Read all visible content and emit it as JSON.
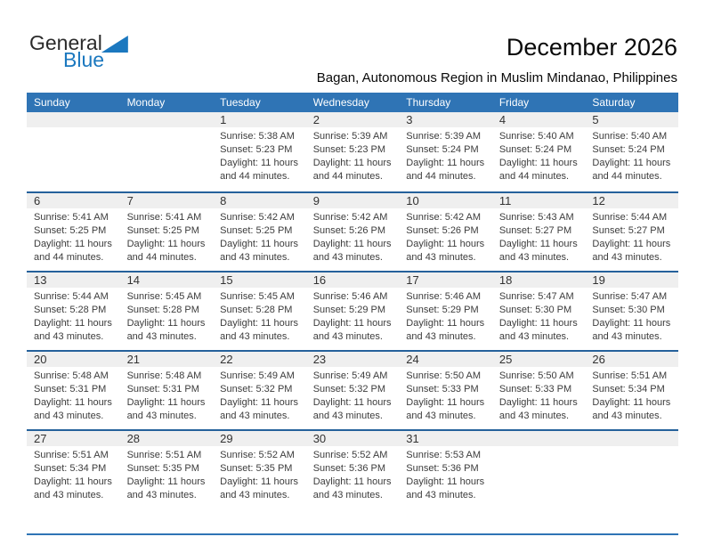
{
  "logo": {
    "text_general": "General",
    "text_blue": "Blue"
  },
  "header": {
    "title": "December 2026",
    "subtitle": "Bagan, Autonomous Region in Muslim Mindanao, Philippines"
  },
  "colors": {
    "header_bg": "#2f74b5",
    "week_divider": "#25619b",
    "day_band_bg": "#efefef",
    "accent_blue": "#1b78bf",
    "cell_text": "#3c3c3c"
  },
  "calendar": {
    "day_headers": [
      "Sunday",
      "Monday",
      "Tuesday",
      "Wednesday",
      "Thursday",
      "Friday",
      "Saturday"
    ],
    "weeks": [
      {
        "cells": [
          {
            "day": "",
            "lines": []
          },
          {
            "day": "",
            "lines": []
          },
          {
            "day": "1",
            "lines": [
              "Sunrise: 5:38 AM",
              "Sunset: 5:23 PM",
              "Daylight: 11 hours",
              "and 44 minutes."
            ]
          },
          {
            "day": "2",
            "lines": [
              "Sunrise: 5:39 AM",
              "Sunset: 5:23 PM",
              "Daylight: 11 hours",
              "and 44 minutes."
            ]
          },
          {
            "day": "3",
            "lines": [
              "Sunrise: 5:39 AM",
              "Sunset: 5:24 PM",
              "Daylight: 11 hours",
              "and 44 minutes."
            ]
          },
          {
            "day": "4",
            "lines": [
              "Sunrise: 5:40 AM",
              "Sunset: 5:24 PM",
              "Daylight: 11 hours",
              "and 44 minutes."
            ]
          },
          {
            "day": "5",
            "lines": [
              "Sunrise: 5:40 AM",
              "Sunset: 5:24 PM",
              "Daylight: 11 hours",
              "and 44 minutes."
            ]
          }
        ]
      },
      {
        "cells": [
          {
            "day": "6",
            "lines": [
              "Sunrise: 5:41 AM",
              "Sunset: 5:25 PM",
              "Daylight: 11 hours",
              "and 44 minutes."
            ]
          },
          {
            "day": "7",
            "lines": [
              "Sunrise: 5:41 AM",
              "Sunset: 5:25 PM",
              "Daylight: 11 hours",
              "and 44 minutes."
            ]
          },
          {
            "day": "8",
            "lines": [
              "Sunrise: 5:42 AM",
              "Sunset: 5:25 PM",
              "Daylight: 11 hours",
              "and 43 minutes."
            ]
          },
          {
            "day": "9",
            "lines": [
              "Sunrise: 5:42 AM",
              "Sunset: 5:26 PM",
              "Daylight: 11 hours",
              "and 43 minutes."
            ]
          },
          {
            "day": "10",
            "lines": [
              "Sunrise: 5:42 AM",
              "Sunset: 5:26 PM",
              "Daylight: 11 hours",
              "and 43 minutes."
            ]
          },
          {
            "day": "11",
            "lines": [
              "Sunrise: 5:43 AM",
              "Sunset: 5:27 PM",
              "Daylight: 11 hours",
              "and 43 minutes."
            ]
          },
          {
            "day": "12",
            "lines": [
              "Sunrise: 5:44 AM",
              "Sunset: 5:27 PM",
              "Daylight: 11 hours",
              "and 43 minutes."
            ]
          }
        ]
      },
      {
        "cells": [
          {
            "day": "13",
            "lines": [
              "Sunrise: 5:44 AM",
              "Sunset: 5:28 PM",
              "Daylight: 11 hours",
              "and 43 minutes."
            ]
          },
          {
            "day": "14",
            "lines": [
              "Sunrise: 5:45 AM",
              "Sunset: 5:28 PM",
              "Daylight: 11 hours",
              "and 43 minutes."
            ]
          },
          {
            "day": "15",
            "lines": [
              "Sunrise: 5:45 AM",
              "Sunset: 5:28 PM",
              "Daylight: 11 hours",
              "and 43 minutes."
            ]
          },
          {
            "day": "16",
            "lines": [
              "Sunrise: 5:46 AM",
              "Sunset: 5:29 PM",
              "Daylight: 11 hours",
              "and 43 minutes."
            ]
          },
          {
            "day": "17",
            "lines": [
              "Sunrise: 5:46 AM",
              "Sunset: 5:29 PM",
              "Daylight: 11 hours",
              "and 43 minutes."
            ]
          },
          {
            "day": "18",
            "lines": [
              "Sunrise: 5:47 AM",
              "Sunset: 5:30 PM",
              "Daylight: 11 hours",
              "and 43 minutes."
            ]
          },
          {
            "day": "19",
            "lines": [
              "Sunrise: 5:47 AM",
              "Sunset: 5:30 PM",
              "Daylight: 11 hours",
              "and 43 minutes."
            ]
          }
        ]
      },
      {
        "cells": [
          {
            "day": "20",
            "lines": [
              "Sunrise: 5:48 AM",
              "Sunset: 5:31 PM",
              "Daylight: 11 hours",
              "and 43 minutes."
            ]
          },
          {
            "day": "21",
            "lines": [
              "Sunrise: 5:48 AM",
              "Sunset: 5:31 PM",
              "Daylight: 11 hours",
              "and 43 minutes."
            ]
          },
          {
            "day": "22",
            "lines": [
              "Sunrise: 5:49 AM",
              "Sunset: 5:32 PM",
              "Daylight: 11 hours",
              "and 43 minutes."
            ]
          },
          {
            "day": "23",
            "lines": [
              "Sunrise: 5:49 AM",
              "Sunset: 5:32 PM",
              "Daylight: 11 hours",
              "and 43 minutes."
            ]
          },
          {
            "day": "24",
            "lines": [
              "Sunrise: 5:50 AM",
              "Sunset: 5:33 PM",
              "Daylight: 11 hours",
              "and 43 minutes."
            ]
          },
          {
            "day": "25",
            "lines": [
              "Sunrise: 5:50 AM",
              "Sunset: 5:33 PM",
              "Daylight: 11 hours",
              "and 43 minutes."
            ]
          },
          {
            "day": "26",
            "lines": [
              "Sunrise: 5:51 AM",
              "Sunset: 5:34 PM",
              "Daylight: 11 hours",
              "and 43 minutes."
            ]
          }
        ]
      },
      {
        "cells": [
          {
            "day": "27",
            "lines": [
              "Sunrise: 5:51 AM",
              "Sunset: 5:34 PM",
              "Daylight: 11 hours",
              "and 43 minutes."
            ]
          },
          {
            "day": "28",
            "lines": [
              "Sunrise: 5:51 AM",
              "Sunset: 5:35 PM",
              "Daylight: 11 hours",
              "and 43 minutes."
            ]
          },
          {
            "day": "29",
            "lines": [
              "Sunrise: 5:52 AM",
              "Sunset: 5:35 PM",
              "Daylight: 11 hours",
              "and 43 minutes."
            ]
          },
          {
            "day": "30",
            "lines": [
              "Sunrise: 5:52 AM",
              "Sunset: 5:36 PM",
              "Daylight: 11 hours",
              "and 43 minutes."
            ]
          },
          {
            "day": "31",
            "lines": [
              "Sunrise: 5:53 AM",
              "Sunset: 5:36 PM",
              "Daylight: 11 hours",
              "and 43 minutes."
            ]
          },
          {
            "day": "",
            "lines": []
          },
          {
            "day": "",
            "lines": []
          }
        ]
      }
    ]
  }
}
